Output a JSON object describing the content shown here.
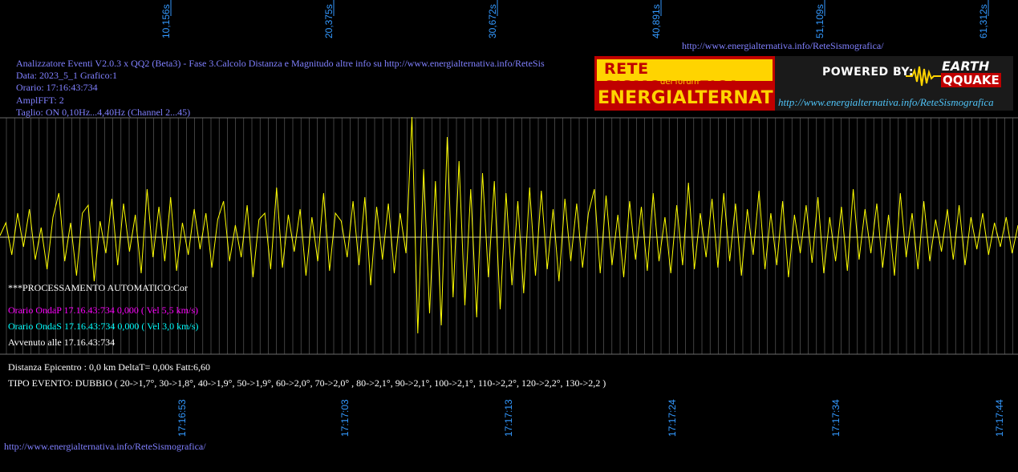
{
  "top_url": "http://www.energialternativa.info/ReteSismografica/",
  "bottom_url": "http://www.energialternativa.info/ReteSismografica/",
  "info": {
    "title": "Analizzatore Eventi V2.0.3 x QQ2 (Beta3) - Fase 3.Calcolo Distanza e Magnitudo altre info su http://www.energialternativa.info/ReteSis",
    "data": "Data: 2023_5_1 Grafico:1",
    "orario": "Orario: 17:16:43:734",
    "ampl": "AmplFFT: 2",
    "taglio": "Taglio: ON 0,10Hz...4,40Hz       (Channel 2...45)"
  },
  "logo": {
    "line1": "RETE SISMOGRAFICA",
    "line2": "del forum",
    "line3": "ENERGIALTERNATIVA",
    "powered": "POWERED BY:",
    "earth": "EARTH",
    "qquake": "QQUAKE",
    "url": "http://www.energialternativa.info/ReteSismografica"
  },
  "results": {
    "processing": "***PROCESSAMENTO AUTOMATICO:Cor",
    "onda_p": "Orario OndaP 17.16.43:734  0,000 ( Vel 5,5 km/s)",
    "onda_s": "Orario OndaS 17.16.43:734  0,000 ( Vel 3,0 km/s)",
    "avvenuto": "Avvenuto alle 17.16.43:734",
    "distanza": "Distanza Epicentro : 0,0 km DeltaT= 0,00s  Fatt:6,60",
    "tipo": "TIPO EVENTO: DUBBIO ( 20->1,7°, 30->1,8°, 40->1,9°, 50->1,9°, 60->2,0°, 70->2,0° , 80->2,1°, 90->2,1°, 100->2,1°, 110->2,2°, 120->2,2°, 130->2,2 )"
  },
  "colors": {
    "background": "#000000",
    "waveform": "#ffff00",
    "grid": "#6b6b6b",
    "info_text": "#8080ff",
    "onda_p": "#ff00ff",
    "onda_s": "#00ffff",
    "axis_labels": "#3399ff"
  },
  "chart_data": {
    "type": "line",
    "title": "",
    "xlabel": "",
    "ylabel": "",
    "top_ticks": [
      "10,156s",
      "20,375s",
      "30,672s",
      "40,891s",
      "51,109s",
      "61,312s"
    ],
    "bottom_ticks": [
      "17:16:53",
      "17:17:03",
      "17:17:13",
      "17:17:24",
      "17:17:34",
      "17:17:44"
    ],
    "grid": true,
    "series": [
      {
        "values": [
          2,
          18,
          -22,
          30,
          -12,
          35,
          -28,
          12,
          -40,
          25,
          55,
          -30,
          18,
          -48,
          30,
          40,
          -55,
          20,
          -20,
          48,
          -35,
          42,
          -18,
          28,
          -45,
          60,
          -25,
          38,
          -30,
          50,
          -42,
          18,
          -22,
          35,
          -15,
          30,
          -38,
          22,
          45,
          -30,
          15,
          -25,
          40,
          -50,
          22,
          30,
          -40,
          62,
          -38,
          28,
          -18,
          35,
          -48,
          25,
          -30,
          55,
          -42,
          30,
          20,
          -25,
          45,
          -35,
          50,
          -60,
          38,
          -28,
          42,
          -45,
          30,
          -20,
          150,
          -120,
          85,
          -95,
          70,
          -110,
          125,
          -75,
          95,
          -85,
          60,
          -100,
          80,
          -50,
          70,
          -90,
          55,
          -60,
          45,
          -70,
          62,
          -48,
          58,
          -40,
          35,
          -55,
          48,
          -30,
          42,
          -38,
          30,
          60,
          -45,
          52,
          -35,
          28,
          -50,
          45,
          -28,
          38,
          -42,
          55,
          -30,
          25,
          -45,
          40,
          -35,
          68,
          -40,
          30,
          -25,
          48,
          -38,
          55,
          -30,
          42,
          -48,
          35,
          -22,
          58,
          -40,
          30,
          -35,
          45,
          -50,
          28,
          -20,
          40,
          -32,
          50,
          -45,
          25,
          -30,
          38,
          -42,
          60,
          -28,
          35,
          -20,
          42,
          -38,
          28,
          -48,
          55,
          -25,
          30,
          -40,
          45,
          -30,
          22,
          -18,
          35,
          -28,
          40,
          -35,
          25,
          -15,
          30,
          -22,
          18,
          -12,
          25,
          -20,
          15
        ]
      }
    ]
  }
}
